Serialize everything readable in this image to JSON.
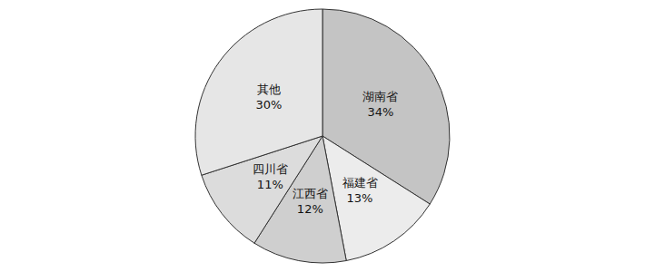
{
  "chart_data": {
    "type": "pie",
    "categories": [
      "湖南省",
      "福建省",
      "江西省",
      "四川省",
      "其他"
    ],
    "values": [
      34,
      13,
      12,
      11,
      30
    ],
    "value_labels": [
      "34%",
      "13%",
      "12%",
      "11%",
      "30%"
    ],
    "colors": [
      "#c4c4c4",
      "#ececec",
      "#cfcfcf",
      "#dcdcdc",
      "#e6e6e6"
    ],
    "data_labels": true
  }
}
